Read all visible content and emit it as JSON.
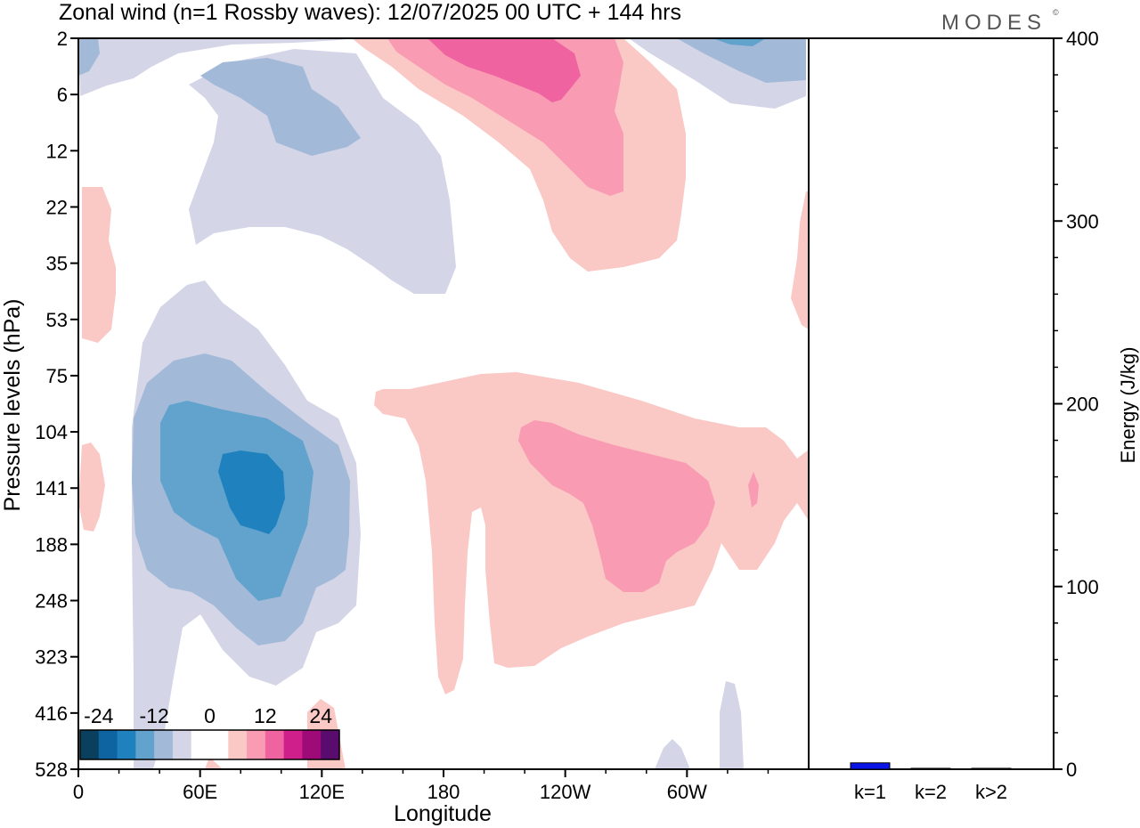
{
  "title": "Zonal wind (n=1 Rossby waves):  12/07/2025  00 UTC  + 144 hrs",
  "brand": "MODES",
  "brand_mark": "©",
  "colors": {
    "neg3": "#1f82bf",
    "neg2": "#62a3cd",
    "neg1": "#a3b9d8",
    "neg0": "#d4d5e7",
    "pos0": "#fac8c5",
    "pos1": "#f89bb3",
    "pos2": "#f063a1",
    "bar": "#0a14e6"
  },
  "chart_data": [
    {
      "type": "heatmap",
      "plot_kind": "filled-contour (longitude-pressure cross-section)",
      "xlabel": "Longitude",
      "ylabel": "Pressure levels (hPa)",
      "x_ticks": [
        "0",
        "60E",
        "120E",
        "180",
        "120W",
        "60W"
      ],
      "x_range_deg_east": [
        0,
        360
      ],
      "y_ticks": [
        "2",
        "6",
        "12",
        "22",
        "35",
        "53",
        "75",
        "104",
        "141",
        "188",
        "248",
        "323",
        "416",
        "528"
      ],
      "y_scale": "model levels (pressure increases downward)",
      "colorbar": {
        "tick_labels": [
          "-24",
          "-12",
          "0",
          "12",
          "24"
        ],
        "colors": [
          "#0b3f5e",
          "#0d64a0",
          "#1f82bf",
          "#62a3cd",
          "#a3b9d8",
          "#d4d5e7",
          "#ffffff",
          "#ffffff",
          "#fac8c5",
          "#f89bb3",
          "#f063a1",
          "#cf1f8a",
          "#9e0a78",
          "#5a0b6e"
        ]
      },
      "features": [
        {
          "sign": "negative",
          "peak_level": "-18",
          "center_lon": "80E",
          "center_hPa": 141
        },
        {
          "sign": "positive",
          "peak_level": "12",
          "center_lon": "120W",
          "center_hPa": 141
        },
        {
          "sign": "positive",
          "peak_level": "12",
          "center_lon": "165W",
          "center_hPa": 4
        },
        {
          "sign": "negative",
          "peak_level": "-6",
          "center_lon": "75E",
          "center_hPa": 12
        }
      ]
    },
    {
      "type": "bar",
      "ylabel": "Energy (J/kg)",
      "y_ticks": [
        "0",
        "100",
        "200",
        "300",
        "400"
      ],
      "ylim": [
        0,
        400
      ],
      "categories": [
        "k=1",
        "k=2",
        "k>2"
      ],
      "values": [
        3.5,
        0.5,
        0.5
      ]
    }
  ]
}
